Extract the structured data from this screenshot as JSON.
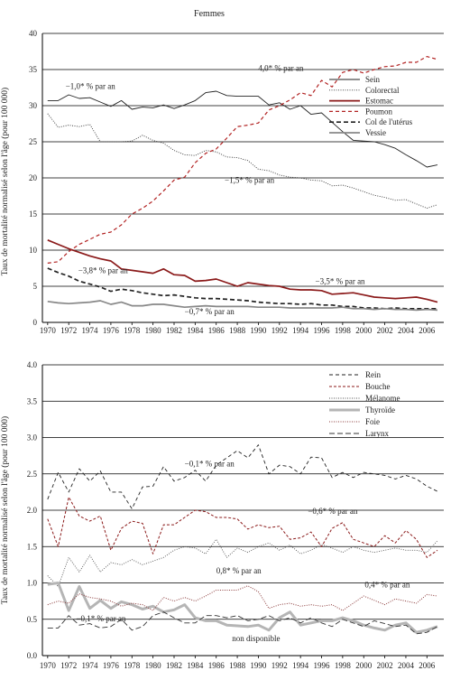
{
  "figure_title": "Femmes",
  "ylabel": "Taux de mortalité normalisé selon l'âge (pour 100 000)",
  "chart_data": [
    {
      "type": "line",
      "ylim": [
        0,
        40
      ],
      "yticks": [
        "0",
        "5",
        "10",
        "15",
        "20",
        "25",
        "30",
        "35",
        "40"
      ],
      "xticks": [
        "1970",
        "1972",
        "1974",
        "1976",
        "1978",
        "1980",
        "1982",
        "1984",
        "1986",
        "1988",
        "1990",
        "1992",
        "1994",
        "1996",
        "1998",
        "2000",
        "2002",
        "2004",
        "2006"
      ],
      "grid": "horizontal",
      "legend_position": "right",
      "x": [
        1970,
        1971,
        1972,
        1973,
        1974,
        1975,
        1976,
        1977,
        1978,
        1979,
        1980,
        1981,
        1982,
        1983,
        1984,
        1985,
        1986,
        1987,
        1988,
        1989,
        1990,
        1991,
        1992,
        1993,
        1994,
        1995,
        1996,
        1997,
        1998,
        1999,
        2000,
        2001,
        2002,
        2003,
        2004,
        2005,
        2006,
        2007
      ],
      "series": [
        {
          "name": "Sein",
          "color": "#222222",
          "dash": "",
          "width": 0.9,
          "values": [
            30.7,
            30.7,
            31.5,
            31.0,
            31.1,
            30.5,
            29.9,
            30.7,
            29.5,
            29.8,
            29.7,
            30.1,
            29.6,
            30.1,
            30.7,
            31.8,
            32.0,
            31.4,
            31.3,
            31.3,
            31.3,
            30.1,
            30.4,
            29.5,
            30.0,
            28.8,
            29.0,
            27.7,
            26.4,
            25.2,
            25.1,
            25.0,
            24.6,
            24.1,
            23.2,
            22.4,
            21.5,
            21.8
          ]
        },
        {
          "name": "Colorectal",
          "color": "#333333",
          "dash": "1,1.5",
          "width": 0.9,
          "values": [
            28.9,
            27.0,
            27.3,
            27.1,
            27.4,
            25.0,
            25.0,
            25.0,
            25.1,
            25.9,
            25.2,
            24.8,
            23.8,
            23.2,
            23.1,
            23.8,
            23.6,
            22.9,
            22.8,
            22.4,
            21.2,
            21.0,
            20.4,
            20.1,
            20.0,
            19.7,
            19.6,
            18.9,
            19.0,
            18.6,
            18.1,
            17.6,
            17.3,
            16.9,
            17.0,
            16.4,
            15.8,
            16.3
          ]
        },
        {
          "name": "Estomac",
          "color": "#8b1a1a",
          "dash": "",
          "width": 1.7,
          "values": [
            11.4,
            10.8,
            10.2,
            9.7,
            9.2,
            8.8,
            8.5,
            7.4,
            7.2,
            7.0,
            6.8,
            7.4,
            6.6,
            6.5,
            5.7,
            5.8,
            6.0,
            5.5,
            5.0,
            5.5,
            5.3,
            5.1,
            5.0,
            4.6,
            4.5,
            4.5,
            4.4,
            3.9,
            4.0,
            4.1,
            3.8,
            3.5,
            3.4,
            3.3,
            3.4,
            3.5,
            3.2,
            2.8
          ]
        },
        {
          "name": "Poumon",
          "color": "#b22222",
          "dash": "4,3",
          "width": 1.2,
          "values": [
            8.2,
            8.4,
            9.8,
            10.8,
            11.5,
            12.2,
            12.5,
            13.5,
            15.0,
            15.8,
            16.8,
            18.2,
            19.7,
            20.1,
            22.1,
            23.4,
            24.0,
            25.5,
            27.1,
            27.3,
            27.6,
            29.4,
            30.0,
            30.8,
            31.8,
            31.4,
            33.5,
            32.6,
            34.6,
            35.0,
            34.5,
            35.0,
            35.4,
            35.5,
            36.0,
            36.0,
            36.8,
            36.4
          ]
        },
        {
          "name": "Col de l'utérus",
          "color": "#222222",
          "dash": "5,3",
          "width": 1.7,
          "values": [
            7.5,
            6.9,
            6.4,
            5.7,
            5.3,
            4.9,
            4.3,
            4.6,
            4.4,
            4.1,
            3.9,
            3.7,
            3.8,
            3.6,
            3.4,
            3.3,
            3.3,
            3.2,
            3.1,
            3.0,
            2.8,
            2.7,
            2.6,
            2.6,
            2.5,
            2.6,
            2.4,
            2.4,
            2.2,
            2.2,
            2.0,
            2.0,
            1.9,
            2.0,
            1.9,
            1.9,
            1.9,
            1.9
          ]
        },
        {
          "name": "Vessie",
          "color": "#888888",
          "dash": "",
          "width": 1.7,
          "values": [
            2.9,
            2.7,
            2.6,
            2.7,
            2.8,
            3.0,
            2.5,
            2.8,
            2.3,
            2.3,
            2.5,
            2.5,
            2.3,
            2.1,
            2.2,
            2.3,
            2.2,
            2.2,
            2.2,
            2.2,
            2.1,
            2.1,
            2.1,
            2.0,
            2.0,
            2.0,
            2.0,
            2.0,
            2.1,
            1.9,
            1.9,
            1.8,
            1.9,
            1.8,
            1.8,
            1.7,
            1.8,
            1.7
          ]
        }
      ],
      "annotations": [
        {
          "text": "−1,0* % par an",
          "x": 1971.7,
          "y": 32.3,
          "anchor": "start"
        },
        {
          "text": "4,0* % par an",
          "x": 1990.0,
          "y": 34.8,
          "anchor": "start"
        },
        {
          "text": "−1,5* % par an",
          "x": 1986.8,
          "y": 19.3,
          "anchor": "start"
        },
        {
          "text": "−3,8* % par an",
          "x": 1972.9,
          "y": 6.8,
          "anchor": "start"
        },
        {
          "text": "−3,5* % par an",
          "x": 1995.4,
          "y": 5.3,
          "anchor": "start"
        },
        {
          "text": "−0,7* % par an",
          "x": 1983.0,
          "y": 1.1,
          "anchor": "start"
        }
      ]
    },
    {
      "type": "line",
      "ylim": [
        0,
        4
      ],
      "yticks": [
        "0.0",
        "0.5",
        "1.0",
        "1.5",
        "2.0",
        "2.5",
        "3.0",
        "3.5",
        "4.0"
      ],
      "xticks": [
        "1970",
        "1972",
        "1974",
        "1976",
        "1978",
        "1980",
        "1982",
        "1984",
        "1986",
        "1988",
        "1990",
        "1992",
        "1994",
        "1996",
        "1998",
        "2000",
        "2002",
        "2004",
        "2006"
      ],
      "grid": "horizontal",
      "legend_position": "right",
      "x": [
        1970,
        1971,
        1972,
        1973,
        1974,
        1975,
        1976,
        1977,
        1978,
        1979,
        1980,
        1981,
        1982,
        1983,
        1984,
        1985,
        1986,
        1987,
        1988,
        1989,
        1990,
        1991,
        1992,
        1993,
        1994,
        1995,
        1996,
        1997,
        1998,
        1999,
        2000,
        2001,
        2002,
        2003,
        2004,
        2005,
        2006,
        2007
      ],
      "series": [
        {
          "name": "Rein",
          "color": "#222222",
          "dash": "4,3",
          "width": 0.9,
          "values": [
            2.15,
            2.52,
            2.25,
            2.57,
            2.4,
            2.54,
            2.25,
            2.25,
            2.02,
            2.32,
            2.33,
            2.6,
            2.4,
            2.45,
            2.55,
            2.4,
            2.62,
            2.72,
            2.82,
            2.72,
            2.9,
            2.5,
            2.62,
            2.6,
            2.5,
            2.73,
            2.72,
            2.45,
            2.52,
            2.45,
            2.52,
            2.5,
            2.48,
            2.43,
            2.48,
            2.43,
            2.33,
            2.26
          ]
        },
        {
          "name": "Bouche",
          "color": "#8b1a1a",
          "dash": "3,2",
          "width": 1.0,
          "values": [
            1.88,
            1.5,
            2.18,
            1.92,
            1.85,
            1.92,
            1.45,
            1.75,
            1.85,
            1.82,
            1.4,
            1.8,
            1.8,
            1.9,
            2.0,
            1.98,
            1.9,
            1.9,
            1.88,
            1.74,
            1.8,
            1.76,
            1.78,
            1.6,
            1.62,
            1.7,
            1.5,
            1.75,
            1.83,
            1.6,
            1.55,
            1.5,
            1.65,
            1.55,
            1.72,
            1.6,
            1.35,
            1.45
          ]
        },
        {
          "name": "Mélanome",
          "color": "#555555",
          "dash": "1,1.5",
          "width": 0.9,
          "values": [
            1.1,
            0.95,
            1.35,
            1.15,
            1.38,
            1.15,
            1.28,
            1.25,
            1.32,
            1.25,
            1.3,
            1.35,
            1.45,
            1.5,
            1.48,
            1.4,
            1.6,
            1.35,
            1.48,
            1.42,
            1.5,
            1.55,
            1.45,
            1.52,
            1.4,
            1.45,
            1.53,
            1.48,
            1.42,
            1.5,
            1.45,
            1.42,
            1.45,
            1.48,
            1.45,
            1.45,
            1.42,
            1.58
          ]
        },
        {
          "name": "Thyroïde",
          "color": "#b5b5b5",
          "dash": "",
          "width": 3.0,
          "values": [
            0.98,
            1.0,
            0.62,
            0.95,
            0.65,
            0.76,
            0.65,
            0.74,
            0.7,
            0.64,
            0.68,
            0.6,
            0.63,
            0.7,
            0.52,
            0.48,
            0.48,
            0.42,
            0.41,
            0.4,
            0.42,
            0.35,
            0.52,
            0.6,
            0.42,
            0.45,
            0.48,
            0.48,
            0.52,
            0.48,
            0.42,
            0.38,
            0.35,
            0.42,
            0.45,
            0.32,
            0.35,
            0.4
          ]
        },
        {
          "name": "Foie",
          "color": "#8b3a3a",
          "dash": "1,1.5",
          "width": 1.0,
          "values": [
            0.7,
            0.75,
            0.72,
            0.85,
            0.8,
            0.78,
            0.75,
            0.68,
            0.72,
            0.7,
            0.62,
            0.8,
            0.75,
            0.8,
            0.75,
            0.82,
            0.9,
            0.9,
            0.9,
            0.96,
            0.88,
            0.65,
            0.7,
            0.72,
            0.68,
            0.7,
            0.68,
            0.7,
            0.62,
            0.72,
            0.82,
            0.76,
            0.7,
            0.78,
            0.75,
            0.72,
            0.84,
            0.82
          ]
        },
        {
          "name": "Larynx",
          "color": "#333333",
          "dash": "6,3",
          "width": 0.9,
          "values": [
            0.38,
            0.38,
            0.55,
            0.42,
            0.44,
            0.38,
            0.4,
            0.5,
            0.35,
            0.4,
            0.55,
            0.6,
            0.52,
            0.45,
            0.45,
            0.55,
            0.55,
            0.52,
            0.55,
            0.48,
            0.5,
            0.55,
            0.48,
            0.52,
            0.45,
            0.52,
            0.45,
            0.4,
            0.5,
            0.45,
            0.4,
            0.48,
            0.44,
            0.4,
            0.42,
            0.3,
            0.32,
            0.4
          ]
        }
      ],
      "annotations": [
        {
          "text": "−0,1* % par an",
          "x": 1983.0,
          "y": 2.6,
          "anchor": "start"
        },
        {
          "text": "−0,6* % par an",
          "x": 1994.7,
          "y": 1.95,
          "anchor": "start"
        },
        {
          "text": "0,8* % par an",
          "x": 1986.0,
          "y": 1.13,
          "anchor": "start"
        },
        {
          "text": "0,4* % par an",
          "x": 2000.1,
          "y": 0.94,
          "anchor": "start"
        },
        {
          "text": "−0,1* % par an",
          "x": 1972.7,
          "y": 0.47,
          "anchor": "start"
        },
        {
          "text": "non disponible",
          "x": 1987.5,
          "y": 0.2,
          "anchor": "start"
        }
      ]
    }
  ]
}
